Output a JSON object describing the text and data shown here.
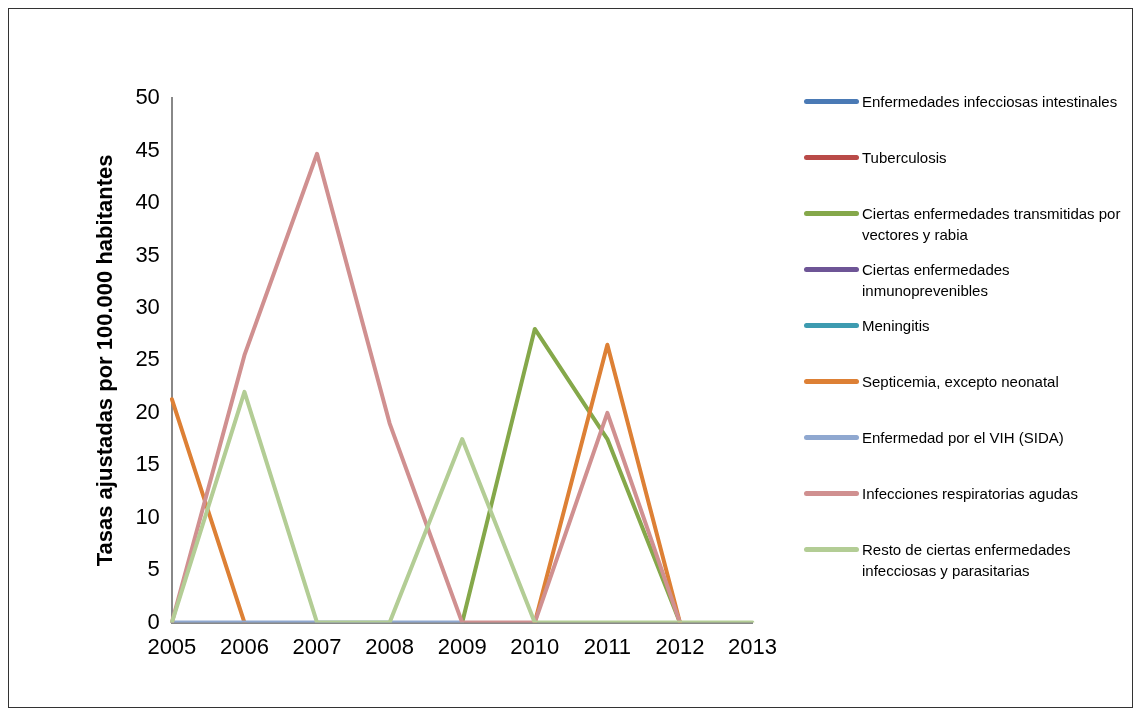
{
  "chart_data": {
    "type": "line",
    "ylabel": "Tasas ajustadas por 100.000 habitantes",
    "categories": [
      "2005",
      "2006",
      "2007",
      "2008",
      "2009",
      "2010",
      "2011",
      "2012",
      "2013"
    ],
    "ylim": [
      0,
      50
    ],
    "yticks": [
      0,
      5,
      10,
      15,
      20,
      25,
      30,
      35,
      40,
      45,
      50
    ],
    "grid": false,
    "legend": "right",
    "marker": "none",
    "line_style": "solid",
    "series": [
      {
        "name": "Enfermedades infecciosas intestinales",
        "color": "#4a7ab5",
        "values": [
          null,
          null,
          null,
          null,
          null,
          null,
          null,
          null,
          null
        ]
      },
      {
        "name": "Tuberculosis",
        "color": "#b94a48",
        "values": [
          null,
          null,
          null,
          null,
          null,
          null,
          null,
          null,
          null
        ]
      },
      {
        "name": "Ciertas enfermedades transmitidas por vectores y rabia",
        "color": "#85a84a",
        "values": [
          null,
          null,
          null,
          null,
          0,
          28,
          17.5,
          0,
          null
        ]
      },
      {
        "name": "Ciertas enfermedades inmunoprevenibles",
        "color": "#6e5596",
        "values": [
          null,
          null,
          null,
          null,
          null,
          null,
          null,
          null,
          null
        ]
      },
      {
        "name": "Meningitis",
        "color": "#3d9bb0",
        "values": [
          null,
          null,
          null,
          null,
          null,
          null,
          null,
          null,
          null
        ]
      },
      {
        "name": "Septicemia, excepto neonatal",
        "color": "#dd8035",
        "values": [
          21.3,
          0,
          null,
          null,
          null,
          0,
          26.5,
          0,
          null
        ]
      },
      {
        "name": "Enfermedad por el VIH (SIDA)",
        "color": "#8fa8d0",
        "values": [
          0,
          0,
          0,
          0,
          0,
          null,
          null,
          null,
          null
        ]
      },
      {
        "name": "Infecciones respiratorias agudas",
        "color": "#d09090",
        "values": [
          0,
          25.5,
          44.7,
          19,
          0,
          0,
          20,
          0,
          null
        ]
      },
      {
        "name": "Resto de ciertas enfermedades infecciosas y parasitarias",
        "color": "#b3cd95",
        "values": [
          0,
          22,
          0,
          0,
          17.5,
          0,
          0,
          0,
          0
        ]
      }
    ]
  }
}
